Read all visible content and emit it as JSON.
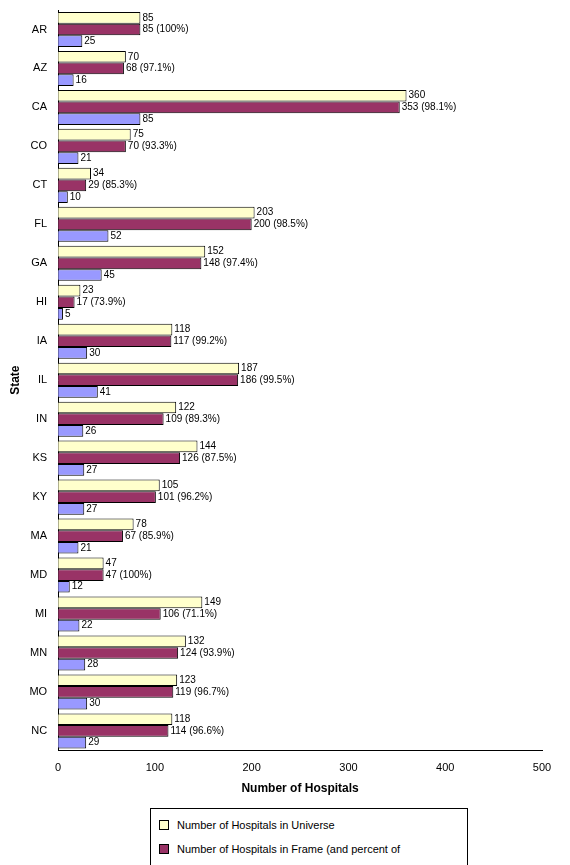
{
  "chart_data": {
    "type": "bar",
    "orientation": "horizontal",
    "categories": [
      "AR",
      "AZ",
      "CA",
      "CO",
      "CT",
      "FL",
      "GA",
      "HI",
      "IA",
      "IL",
      "IN",
      "KS",
      "KY",
      "MA",
      "MD",
      "MI",
      "MN",
      "MO",
      "NC"
    ],
    "series": [
      {
        "name": "Number of  Hospitals in Universe",
        "color": "#ffffcc",
        "values": [
          85,
          70,
          360,
          75,
          34,
          203,
          152,
          23,
          118,
          187,
          122,
          144,
          105,
          78,
          47,
          149,
          132,
          123,
          118
        ]
      },
      {
        "name": "Number of Hospitals in Frame (and percent of",
        "color": "#993366",
        "values": [
          85,
          68,
          353,
          70,
          29,
          200,
          148,
          17,
          117,
          186,
          109,
          126,
          101,
          67,
          47,
          106,
          124,
          119,
          114
        ],
        "value_labels": [
          "85 (100%)",
          "68 (97.1%)",
          "353 (98.1%)",
          "70 (93.3%)",
          "29 (85.3%)",
          "200 (98.5%)",
          "148 (97.4%)",
          "17 (73.9%)",
          "117 (99.2%)",
          "186 (99.5%)",
          "109 (89.3%)",
          "126 (87.5%)",
          "101 (96.2%)",
          "67 (85.9%)",
          "47 (100%)",
          "106 (71.1%)",
          "124 (93.9%)",
          "119 (96.7%)",
          "114 (96.6%)"
        ]
      },
      {
        "color": "#9999ff",
        "values": [
          25,
          16,
          85,
          21,
          10,
          52,
          45,
          5,
          30,
          41,
          26,
          27,
          27,
          21,
          12,
          22,
          28,
          30,
          29
        ]
      }
    ],
    "x_label": "Number of Hospitals",
    "y_label": "State",
    "xlim": [
      0,
      500
    ],
    "xticks": [
      0,
      100,
      200,
      300,
      400,
      500
    ],
    "grid": false,
    "data_labels": true,
    "legend": "bottom"
  }
}
